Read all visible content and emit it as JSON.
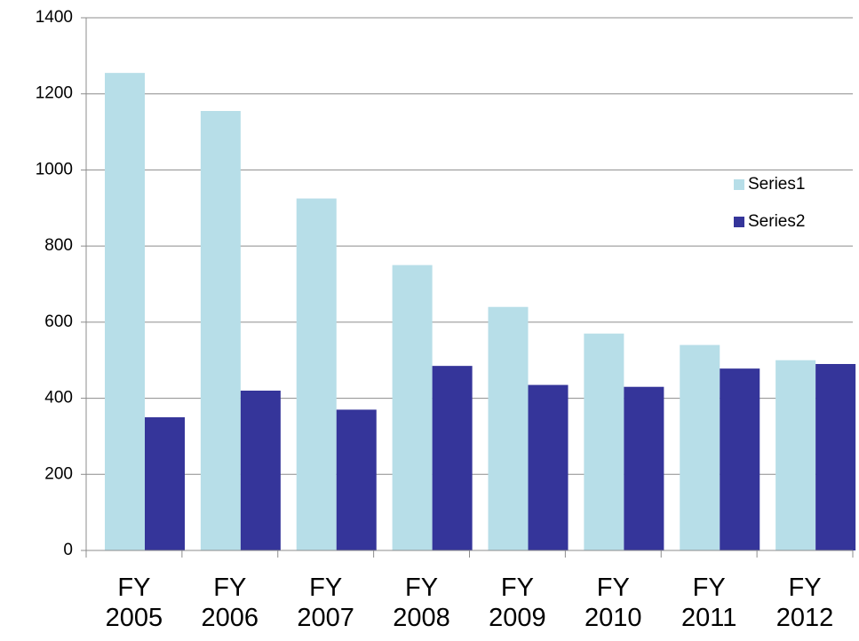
{
  "chart_data": {
    "type": "bar",
    "categories": [
      "FY 2005",
      "FY 2006",
      "FY 2007",
      "FY 2008",
      "FY 2009",
      "FY 2010",
      "FY 2011",
      "FY 2012"
    ],
    "series": [
      {
        "name": "Series1",
        "color": "#b7dee8",
        "values": [
          1255,
          1155,
          925,
          750,
          640,
          570,
          540,
          500
        ]
      },
      {
        "name": "Series2",
        "color": "#35359a",
        "values": [
          350,
          420,
          370,
          485,
          435,
          430,
          478,
          490
        ]
      }
    ],
    "ylim": [
      0,
      1400
    ],
    "yticks": [
      0,
      200,
      400,
      600,
      800,
      1000,
      1200,
      1400
    ],
    "grid": true,
    "legend": "right"
  }
}
